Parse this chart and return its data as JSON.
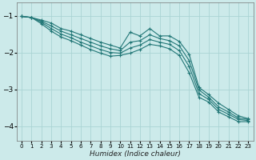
{
  "xlabel": "Humidex (Indice chaleur)",
  "ylabel": "",
  "background_color": "#cceaea",
  "grid_color": "#aad4d4",
  "line_color": "#227777",
  "xlim": [
    -0.5,
    23.5
  ],
  "ylim": [
    -4.4,
    -0.65
  ],
  "xticks": [
    0,
    1,
    2,
    3,
    4,
    5,
    6,
    7,
    8,
    9,
    10,
    11,
    12,
    13,
    14,
    15,
    16,
    17,
    18,
    19,
    20,
    21,
    22,
    23
  ],
  "yticks": [
    -4,
    -3,
    -2,
    -1
  ],
  "x": [
    0,
    1,
    2,
    3,
    4,
    5,
    6,
    7,
    8,
    9,
    10,
    11,
    12,
    13,
    14,
    15,
    16,
    17,
    18,
    19,
    20,
    21,
    22,
    23
  ],
  "series": [
    [
      -1.02,
      -1.05,
      -1.12,
      -1.2,
      -1.35,
      -1.42,
      -1.52,
      -1.62,
      -1.72,
      -1.8,
      -1.88,
      -1.45,
      -1.55,
      -1.35,
      -1.55,
      -1.55,
      -1.7,
      -2.05,
      -2.95,
      -3.15,
      -3.38,
      -3.55,
      -3.72,
      -3.8
    ],
    [
      -1.02,
      -1.05,
      -1.15,
      -1.28,
      -1.42,
      -1.52,
      -1.62,
      -1.72,
      -1.82,
      -1.9,
      -1.95,
      -1.72,
      -1.68,
      -1.52,
      -1.62,
      -1.68,
      -1.82,
      -2.22,
      -3.02,
      -3.22,
      -3.48,
      -3.62,
      -3.78,
      -3.82
    ],
    [
      -1.02,
      -1.05,
      -1.18,
      -1.35,
      -1.5,
      -1.6,
      -1.72,
      -1.82,
      -1.92,
      -2.0,
      -2.02,
      -1.88,
      -1.8,
      -1.65,
      -1.72,
      -1.78,
      -1.95,
      -2.38,
      -3.12,
      -3.28,
      -3.55,
      -3.68,
      -3.82,
      -3.85
    ],
    [
      -1.02,
      -1.05,
      -1.22,
      -1.42,
      -1.58,
      -1.68,
      -1.8,
      -1.92,
      -2.02,
      -2.1,
      -2.08,
      -2.02,
      -1.92,
      -1.78,
      -1.82,
      -1.9,
      -2.08,
      -2.55,
      -3.22,
      -3.35,
      -3.62,
      -3.75,
      -3.88,
      -3.88
    ]
  ],
  "marker": "+",
  "marker_size": 3.5,
  "line_width": 0.8
}
